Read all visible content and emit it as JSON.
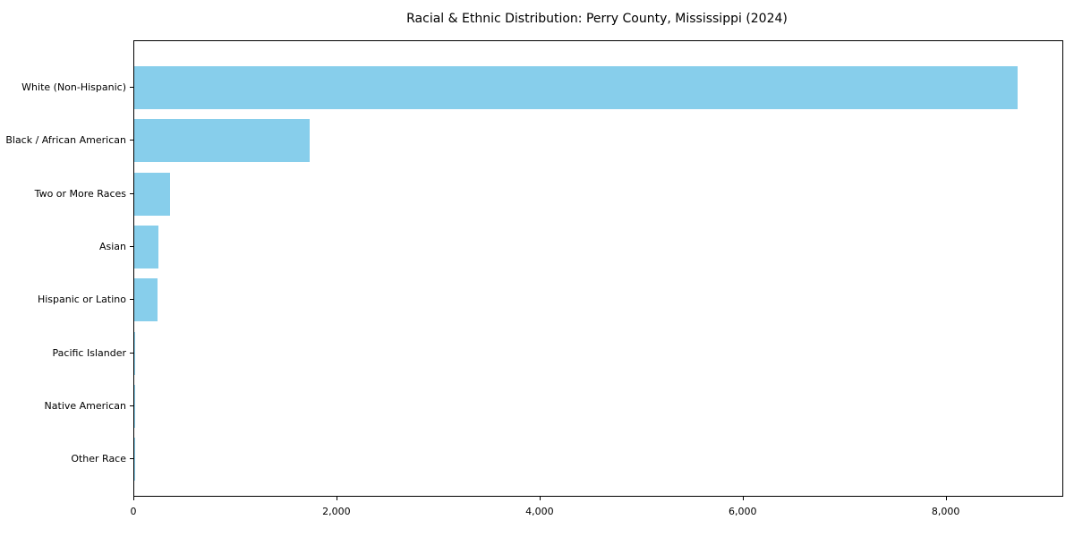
{
  "chart_data": {
    "type": "bar",
    "orientation": "horizontal",
    "title": "Racial & Ethnic Distribution: Perry County, Mississippi (2024)",
    "categories": [
      "White (Non-Hispanic)",
      "Black / African American",
      "Two or More Races",
      "Asian",
      "Hispanic or Latino",
      "Pacific Islander",
      "Native American",
      "Other Race"
    ],
    "values": [
      8700,
      1730,
      355,
      240,
      225,
      12,
      4,
      2
    ],
    "xlabel": "",
    "ylabel": "",
    "xlim": [
      0,
      9140
    ],
    "x_ticks": [
      0,
      2000,
      4000,
      6000,
      8000
    ],
    "x_tick_labels": [
      "0",
      "2,000",
      "4,000",
      "6,000",
      "8,000"
    ],
    "bar_color": "#87CEEB",
    "axis_color": "#000000",
    "text_color": "#000000",
    "background_color": "#ffffff",
    "grid": false,
    "legend_position": "none",
    "sort": "descending"
  }
}
